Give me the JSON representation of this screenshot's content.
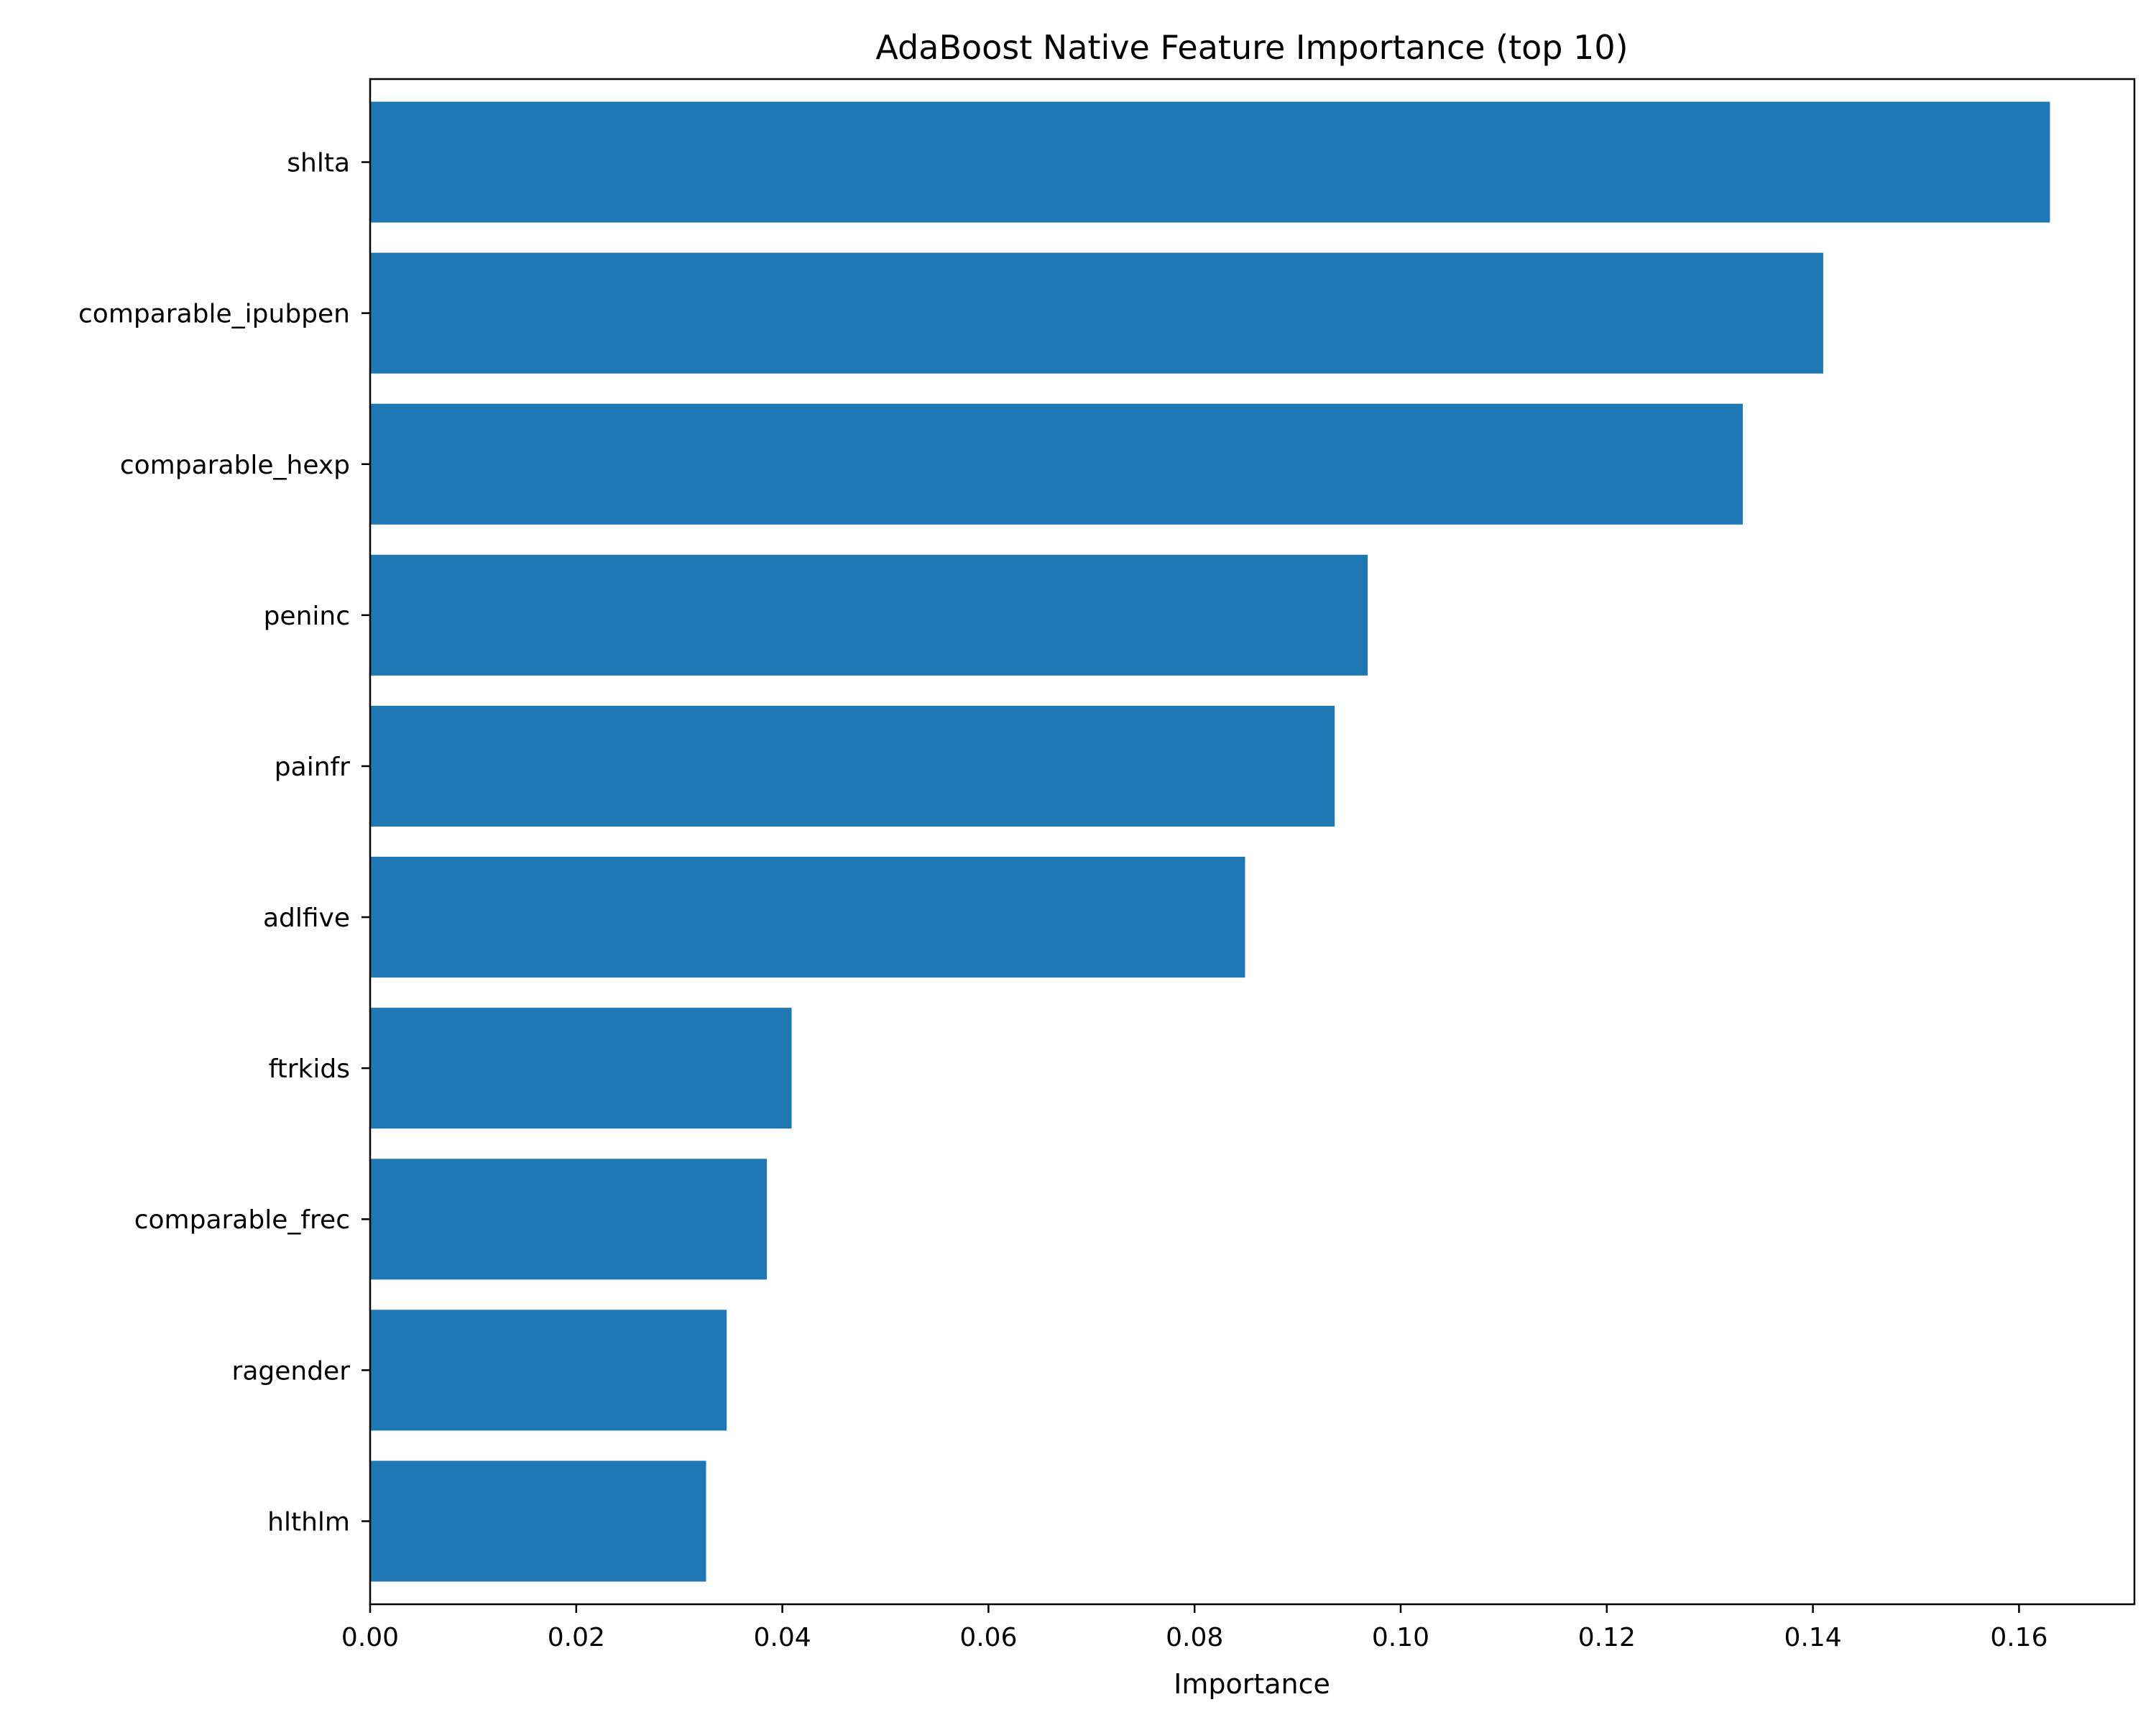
{
  "chart_data": {
    "type": "bar",
    "orientation": "horizontal",
    "title": "AdaBoost Native Feature Importance (top 10)",
    "xlabel": "Importance",
    "ylabel": "",
    "categories": [
      "shlta",
      "comparable_ipubpen",
      "comparable_hexp",
      "peninc",
      "painfr",
      "adlfive",
      "ftrkids",
      "comparable_frec",
      "ragender",
      "hlthlm"
    ],
    "values": [
      0.163,
      0.141,
      0.1332,
      0.0968,
      0.0936,
      0.0849,
      0.0409,
      0.0385,
      0.0346,
      0.0326
    ],
    "xlim": [
      0,
      0.1712
    ],
    "xticks": [
      0.0,
      0.02,
      0.04,
      0.06,
      0.08,
      0.1,
      0.12,
      0.14,
      0.16
    ],
    "xtick_labels": [
      "0.00",
      "0.02",
      "0.04",
      "0.06",
      "0.08",
      "0.10",
      "0.12",
      "0.14",
      "0.16"
    ],
    "bar_color": "#1f77b4",
    "grid": false,
    "legend": "none"
  }
}
